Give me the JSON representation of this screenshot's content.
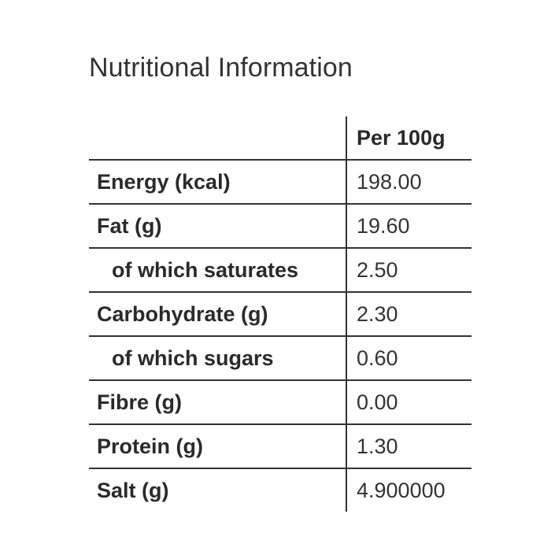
{
  "title": "Nutritional Information",
  "table": {
    "header": {
      "label": "",
      "value": "Per 100g"
    },
    "rows": [
      {
        "label": "Energy (kcal)",
        "value": "198.00",
        "indent": false
      },
      {
        "label": "Fat (g)",
        "value": "19.60",
        "indent": false
      },
      {
        "label": "of which saturates",
        "value": "2.50",
        "indent": true
      },
      {
        "label": "Carbohydrate (g)",
        "value": "2.30",
        "indent": false
      },
      {
        "label": "of which sugars",
        "value": "0.60",
        "indent": true
      },
      {
        "label": "Fibre (g)",
        "value": "0.00",
        "indent": false
      },
      {
        "label": "Protein (g)",
        "value": "1.30",
        "indent": false
      },
      {
        "label": "Salt (g)",
        "value": "4.900000",
        "indent": false
      }
    ]
  }
}
